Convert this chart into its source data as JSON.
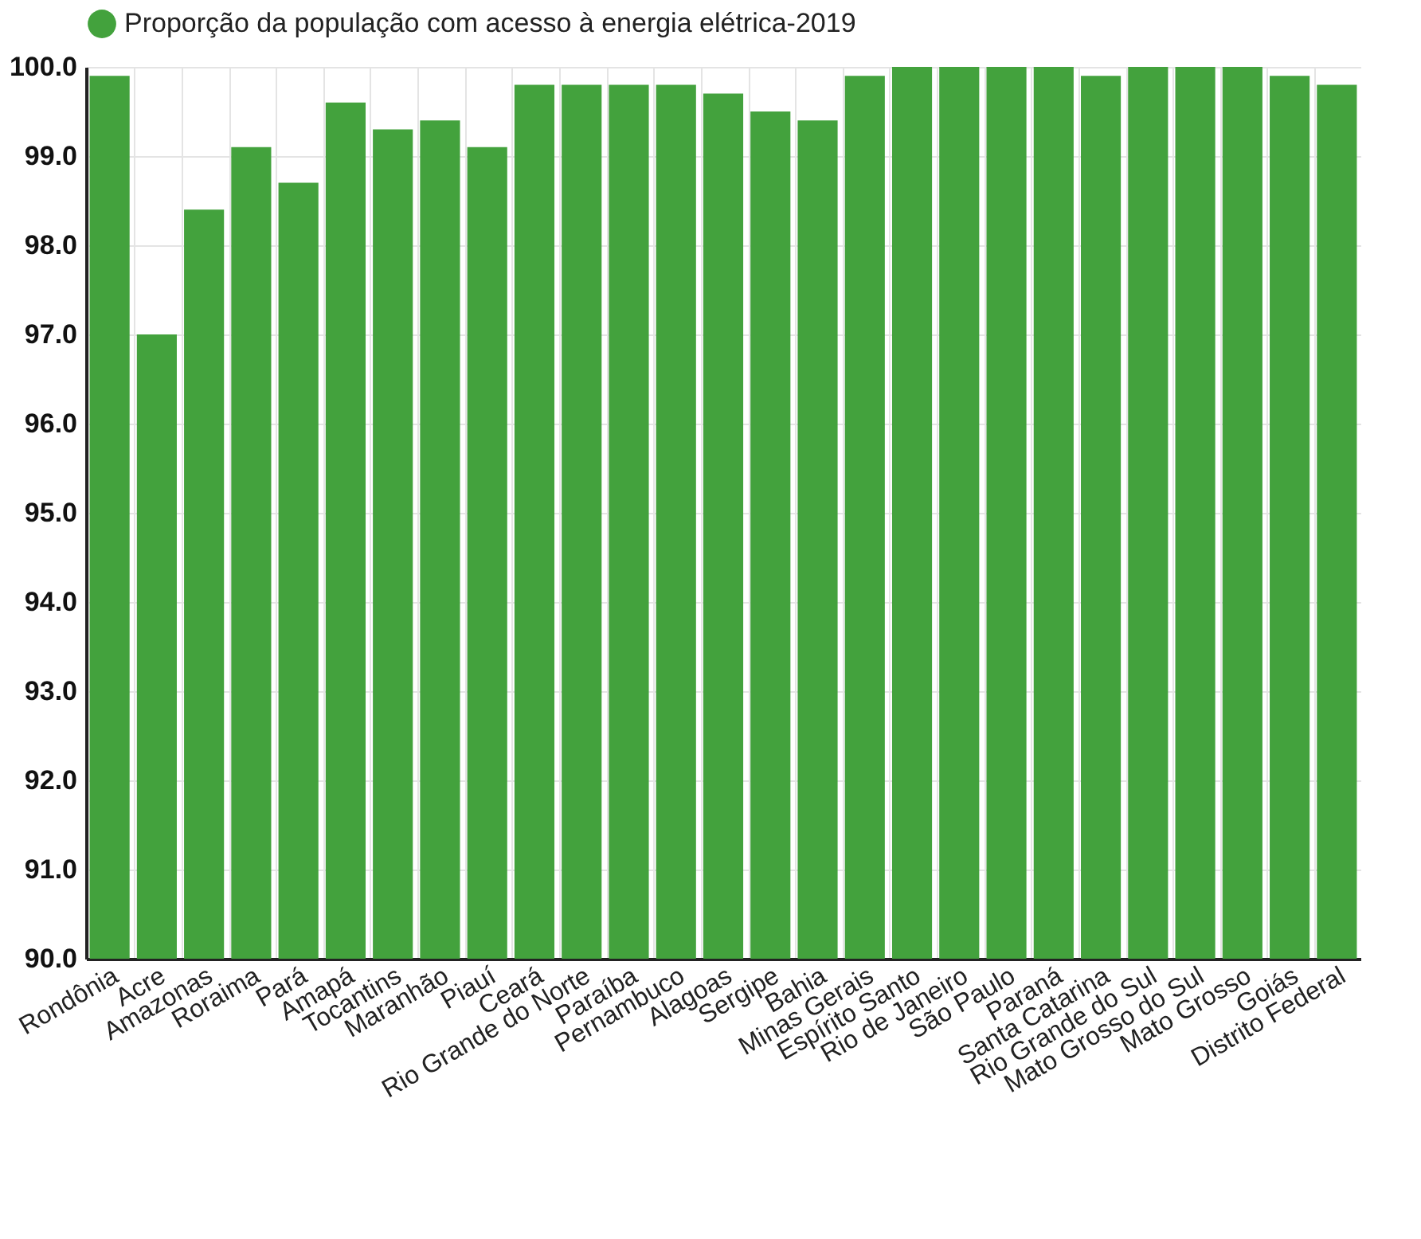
{
  "chart_data": {
    "type": "bar",
    "categories": [
      "Rondônia",
      "Acre",
      "Amazonas",
      "Roraima",
      "Pará",
      "Amapá",
      "Tocantins",
      "Maranhão",
      "Piauí",
      "Ceará",
      "Rio Grande do Norte",
      "Paraíba",
      "Pernambuco",
      "Alagoas",
      "Sergipe",
      "Bahia",
      "Minas Gerais",
      "Espírito Santo",
      "Rio de Janeiro",
      "São Paulo",
      "Paraná",
      "Santa Catarina",
      "Rio Grande do Sul",
      "Mato Grosso do Sul",
      "Mato Grosso",
      "Goiás",
      "Distrito Federal"
    ],
    "series": [
      {
        "name": "Proporção da população com acesso à energia elétrica-2019",
        "color": "#43a23d",
        "values": [
          99.9,
          97.0,
          98.4,
          99.1,
          98.7,
          99.6,
          99.3,
          99.4,
          99.1,
          99.8,
          99.8,
          99.8,
          99.8,
          99.7,
          99.5,
          99.4,
          99.9,
          100.0,
          100.0,
          100.0,
          100.0,
          99.9,
          100.0,
          100.0,
          100.0,
          99.9,
          99.8
        ]
      }
    ],
    "ylim": [
      90,
      100
    ],
    "yticks": [
      {
        "value": 90,
        "label": "90.0"
      },
      {
        "value": 91,
        "label": "91.0"
      },
      {
        "value": 92,
        "label": "92.0"
      },
      {
        "value": 93,
        "label": "93.0"
      },
      {
        "value": 94,
        "label": "94.0"
      },
      {
        "value": 95,
        "label": "95.0"
      },
      {
        "value": 96,
        "label": "96.0"
      },
      {
        "value": 97,
        "label": "97.0"
      },
      {
        "value": 98,
        "label": "98.0"
      },
      {
        "value": 99,
        "label": "99.0"
      },
      {
        "value": 100,
        "label": "100.0"
      }
    ],
    "grid": true,
    "legend": "top"
  }
}
